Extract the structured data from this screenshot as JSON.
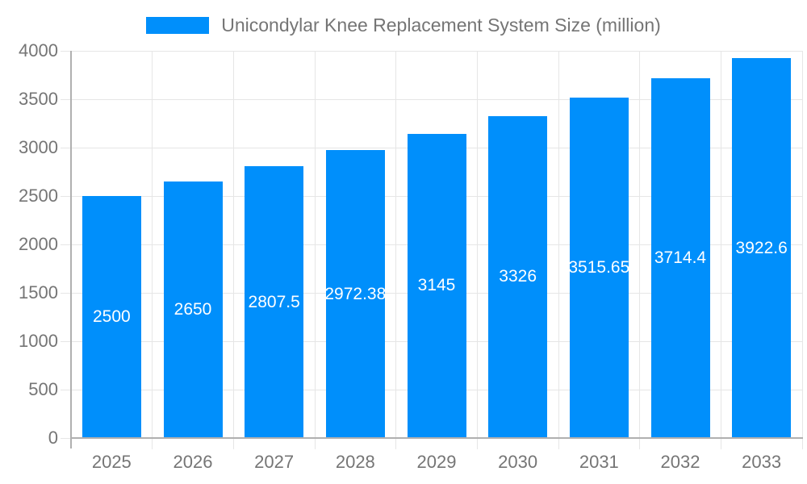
{
  "chart_data": {
    "type": "bar",
    "title": "Unicondylar Knee Replacement System Size (million)",
    "categories": [
      "2025",
      "2026",
      "2027",
      "2028",
      "2029",
      "2030",
      "2031",
      "2032",
      "2033"
    ],
    "values": [
      2500,
      2650,
      2807.5,
      2972.38,
      3145,
      3326,
      3515.65,
      3714.4,
      3922.6
    ],
    "value_labels": [
      "2500",
      "2650",
      "2807.5",
      "2972.38",
      "3145",
      "3326",
      "3515.65",
      "3714.4",
      "3922.6"
    ],
    "xlabel": "",
    "ylabel": "",
    "ylim": [
      0,
      4000
    ],
    "ytick_step": 500,
    "ytick_labels": [
      "0",
      "500",
      "1000",
      "1500",
      "2000",
      "2500",
      "3000",
      "3500",
      "4000"
    ],
    "grid": true,
    "legend_position": "top-center",
    "colors": {
      "bar": "#008FFB",
      "grid": "#e6e6e6",
      "axis": "#b0b0b0",
      "text": "#757575",
      "value_label": "#ffffff",
      "background": "#ffffff"
    }
  }
}
